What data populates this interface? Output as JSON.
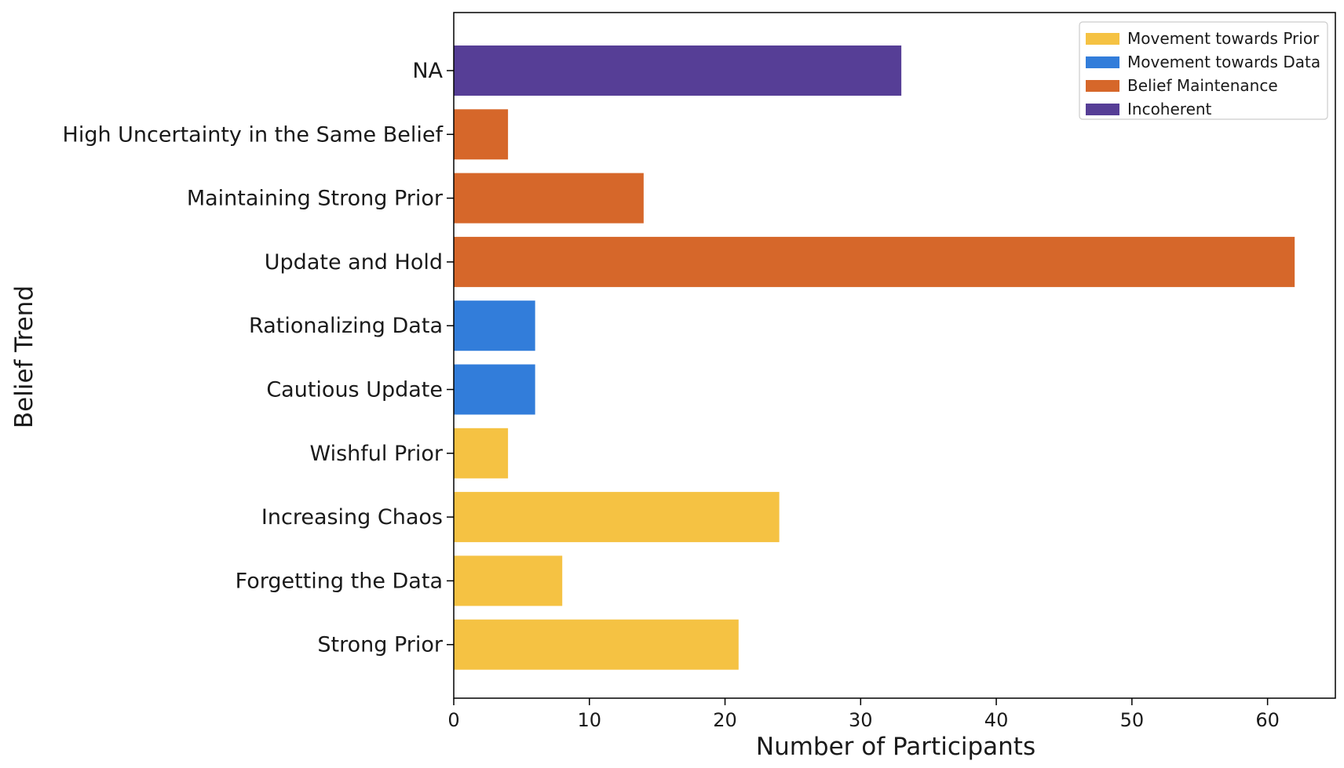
{
  "chart_data": {
    "type": "bar",
    "orientation": "horizontal",
    "xlabel": "Number of Participants",
    "ylabel": "Belief Trend",
    "xlim": [
      0,
      65
    ],
    "xticks": [
      0,
      10,
      20,
      30,
      40,
      50,
      60
    ],
    "grid": false,
    "legend_position": "top-right",
    "categories": [
      "Strong Prior",
      "Forgetting the Data",
      "Increasing Chaos",
      "Wishful Prior",
      "Cautious Update",
      "Rationalizing Data",
      "Update and Hold",
      "Maintaining Strong Prior",
      "High Uncertainty in the Same Belief",
      "NA"
    ],
    "values": [
      21,
      8,
      24,
      4,
      6,
      6,
      62,
      14,
      4,
      33
    ],
    "groups": [
      "Movement towards Prior",
      "Movement towards Prior",
      "Movement towards Prior",
      "Movement towards Prior",
      "Movement towards Data",
      "Movement towards Data",
      "Belief Maintenance",
      "Belief Maintenance",
      "Belief Maintenance",
      "Incoherent"
    ],
    "legend": [
      {
        "name": "Movement towards Prior",
        "color": "#F5C243"
      },
      {
        "name": "Movement towards Data",
        "color": "#327DDA"
      },
      {
        "name": "Belief Maintenance",
        "color": "#D6672A"
      },
      {
        "name": "Incoherent",
        "color": "#563E96"
      }
    ]
  }
}
